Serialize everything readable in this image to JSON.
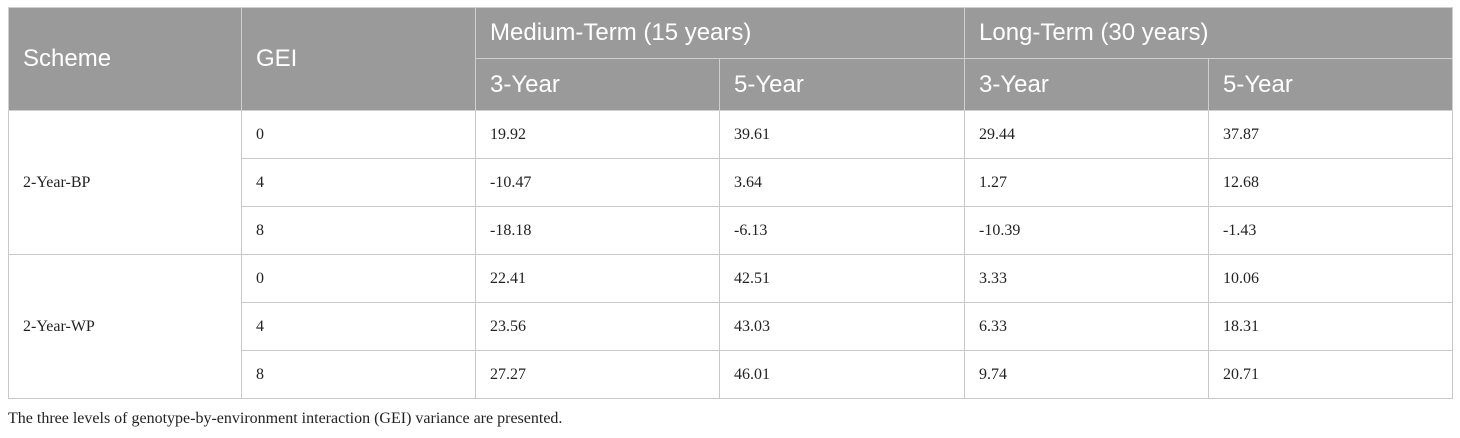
{
  "table": {
    "header": {
      "scheme": "Scheme",
      "gei": "GEI",
      "groups": [
        "Medium-Term (15 years)",
        "Long-Term (30 years)"
      ],
      "subcolumns": [
        "3-Year",
        "5-Year",
        "3-Year",
        "5-Year"
      ]
    },
    "groups": [
      {
        "scheme": "2-Year-BP",
        "rows": [
          {
            "gei": "0",
            "values": [
              "19.92",
              "39.61",
              "29.44",
              "37.87"
            ]
          },
          {
            "gei": "4",
            "values": [
              "-10.47",
              "3.64",
              "1.27",
              "12.68"
            ]
          },
          {
            "gei": "8",
            "values": [
              "-18.18",
              "-6.13",
              "-10.39",
              "-1.43"
            ]
          }
        ]
      },
      {
        "scheme": "2-Year-WP",
        "rows": [
          {
            "gei": "0",
            "values": [
              "22.41",
              "42.51",
              "3.33",
              "10.06"
            ]
          },
          {
            "gei": "4",
            "values": [
              "23.56",
              "43.03",
              "6.33",
              "18.31"
            ]
          },
          {
            "gei": "8",
            "values": [
              "27.27",
              "46.01",
              "9.74",
              "20.71"
            ]
          }
        ]
      }
    ]
  },
  "footnote": "The three levels of genotype-by-environment interaction (GEI) variance are presented."
}
